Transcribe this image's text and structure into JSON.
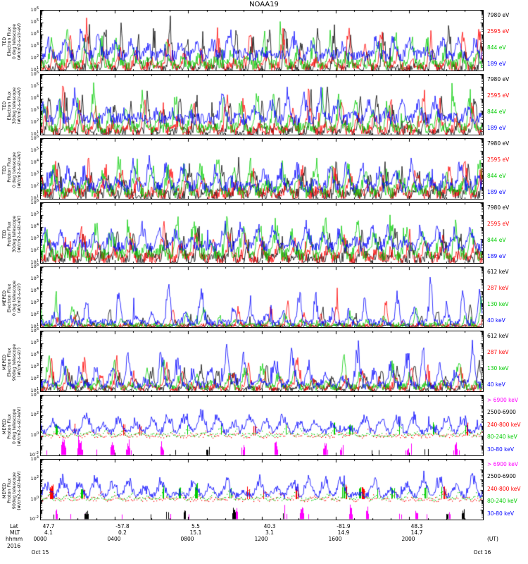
{
  "chart_data": {
    "type": "line",
    "title": "NOAA19",
    "note": "Stacked 24-hour log-scale particle flux time series (TED and MEPED instruments); traces are dense spiky orbital-pass data approximated by the stored per-series parameters (base/amp are log10 flux levels).",
    "x_axis": {
      "row_labels": {
        "lat": "Lat",
        "mlt": "MLT",
        "hhmm": "hhmm"
      },
      "year": "2016",
      "lat_values": [
        "47.7",
        "-57.8",
        "5.5",
        "40.3",
        "-81.9",
        "48.3"
      ],
      "mlt_values": [
        "4.1",
        "0.2",
        "15.1",
        "3.1",
        "14.9",
        "14.7"
      ],
      "hhmm_ticks": [
        "0000",
        "0400",
        "0800",
        "1200",
        "1600",
        "2000"
      ],
      "right_label": "(UT)",
      "date_left": "Oct 15",
      "date_right": "Oct 16"
    },
    "panels": [
      {
        "name": "ted-electron-0deg",
        "left_label_lines": [
          "TED",
          "Electron Flux",
          "0 deg telescope",
          "(#/cm2-s-str-eV)"
        ],
        "y_min_exp": 1,
        "y_max_exp": 6,
        "y_tick_exps": [
          6,
          5,
          4,
          3,
          2,
          1
        ],
        "series": [
          {
            "label": "7980 eV",
            "color": "#000000",
            "mode": "line",
            "base": 1.15,
            "noise": 0.35,
            "amp": 4.6,
            "sharp": 9,
            "gate": 0.6,
            "seed": 11
          },
          {
            "label": "2595 eV",
            "color": "#ff0000",
            "mode": "line",
            "base": 1.3,
            "noise": 0.4,
            "amp": 4.2,
            "sharp": 8,
            "gate": 0.6,
            "seed": 12
          },
          {
            "label": "844 eV",
            "color": "#00cc00",
            "mode": "line",
            "base": 1.5,
            "noise": 0.45,
            "amp": 3.9,
            "sharp": 7,
            "gate": 0.7,
            "seed": 13
          },
          {
            "label": "189 eV",
            "color": "#0000ff",
            "mode": "line",
            "base": 2.25,
            "noise": 0.5,
            "amp": 2.6,
            "sharp": 5,
            "gate": 0.8,
            "seed": 14
          }
        ]
      },
      {
        "name": "ted-electron-30deg",
        "left_label_lines": [
          "TED",
          "Electron Flux",
          "30deg telescope",
          "(#/cm2-s-str-eV)"
        ],
        "y_min_exp": 1,
        "y_max_exp": 6,
        "y_tick_exps": [
          6,
          5,
          4,
          3,
          2,
          1
        ],
        "series": [
          {
            "label": "7980 eV",
            "color": "#000000",
            "mode": "line",
            "base": 1.2,
            "noise": 0.38,
            "amp": 4.5,
            "sharp": 9,
            "gate": 0.6,
            "seed": 21
          },
          {
            "label": "2595 eV",
            "color": "#ff0000",
            "mode": "line",
            "base": 1.35,
            "noise": 0.42,
            "amp": 4.2,
            "sharp": 8,
            "gate": 0.6,
            "seed": 22
          },
          {
            "label": "844 eV",
            "color": "#00cc00",
            "mode": "line",
            "base": 1.55,
            "noise": 0.45,
            "amp": 3.9,
            "sharp": 7,
            "gate": 0.7,
            "seed": 23
          },
          {
            "label": "189 eV",
            "color": "#0000ff",
            "mode": "line",
            "base": 2.3,
            "noise": 0.5,
            "amp": 2.6,
            "sharp": 5,
            "gate": 0.8,
            "seed": 24
          }
        ]
      },
      {
        "name": "ted-proton-0deg",
        "left_label_lines": [
          "TED",
          "Proton Flux",
          "0 deg telescope",
          "(#/cm2-s-str-eV)"
        ],
        "y_min_exp": 1,
        "y_max_exp": 6,
        "y_tick_exps": [
          6,
          5,
          4,
          3,
          2,
          1
        ],
        "series": [
          {
            "label": "7980 eV",
            "color": "#000000",
            "mode": "line",
            "base": 1.35,
            "noise": 0.5,
            "amp": 3.0,
            "sharp": 6,
            "gate": 0.8,
            "seed": 31
          },
          {
            "label": "2595 eV",
            "color": "#ff0000",
            "mode": "line",
            "base": 1.45,
            "noise": 0.5,
            "amp": 3.1,
            "sharp": 6,
            "gate": 0.8,
            "seed": 32
          },
          {
            "label": "844 eV",
            "color": "#00cc00",
            "mode": "line",
            "base": 1.6,
            "noise": 0.55,
            "amp": 3.6,
            "sharp": 5,
            "gate": 0.7,
            "seed": 33
          },
          {
            "label": "189 eV",
            "color": "#0000ff",
            "mode": "line",
            "base": 2.0,
            "noise": 0.5,
            "amp": 2.7,
            "sharp": 5,
            "gate": 0.8,
            "seed": 34
          }
        ]
      },
      {
        "name": "ted-proton-30deg",
        "left_label_lines": [
          "TED",
          "Proton Flux",
          "30deg telescope",
          "(#/cm2-s-str-eV)"
        ],
        "y_min_exp": 1,
        "y_max_exp": 6,
        "y_tick_exps": [
          6,
          5,
          4,
          3,
          2,
          1
        ],
        "series": [
          {
            "label": "7980 eV",
            "color": "#000000",
            "mode": "line",
            "base": 1.3,
            "noise": 0.5,
            "amp": 3.0,
            "sharp": 6,
            "gate": 0.8,
            "seed": 41
          },
          {
            "label": "2595 eV",
            "color": "#ff0000",
            "mode": "line",
            "base": 1.4,
            "noise": 0.5,
            "amp": 3.2,
            "sharp": 6,
            "gate": 0.8,
            "seed": 42
          },
          {
            "label": "844 eV",
            "color": "#00cc00",
            "mode": "line",
            "base": 1.7,
            "noise": 0.55,
            "amp": 3.7,
            "sharp": 5,
            "gate": 0.7,
            "seed": 43
          },
          {
            "label": "189 eV",
            "color": "#0000ff",
            "mode": "line",
            "base": 2.35,
            "noise": 0.45,
            "amp": 2.5,
            "sharp": 4,
            "gate": 0.8,
            "seed": 44
          }
        ]
      },
      {
        "name": "meped-electron-0deg",
        "left_label_lines": [
          "MEPED",
          "Electron Flux",
          "0 deg telescope",
          "(#/cm2-s-str)"
        ],
        "y_min_exp": 1,
        "y_max_exp": 6,
        "y_tick_exps": [
          6,
          5,
          4,
          3,
          2,
          1
        ],
        "series": [
          {
            "label": "612 keV",
            "color": "#000000",
            "mode": "line",
            "base": 1.05,
            "noise": 0.18,
            "amp": 2.3,
            "sharp": 12,
            "gate": 2.5,
            "seed": 51
          },
          {
            "label": "287 keV",
            "color": "#ff0000",
            "mode": "line",
            "base": 1.1,
            "noise": 0.2,
            "amp": 2.9,
            "sharp": 12,
            "gate": 2.2,
            "seed": 52
          },
          {
            "label": "130 keV",
            "color": "#00cc00",
            "mode": "line",
            "base": 1.18,
            "noise": 0.22,
            "amp": 3.3,
            "sharp": 11,
            "gate": 2.0,
            "seed": 53
          },
          {
            "label": "40 keV",
            "color": "#0000ff",
            "mode": "line",
            "base": 1.35,
            "noise": 0.3,
            "amp": 4.3,
            "sharp": 9,
            "gate": 1.4,
            "seed": 54
          }
        ]
      },
      {
        "name": "meped-electron-90deg",
        "left_label_lines": [
          "MEPED",
          "Electron Flux",
          "90deg telescope",
          "(#/cm2-s-str)"
        ],
        "y_min_exp": 1,
        "y_max_exp": 6,
        "y_tick_exps": [
          6,
          5,
          4,
          3,
          2,
          1
        ],
        "series": [
          {
            "label": "612 keV",
            "color": "#000000",
            "mode": "line",
            "base": 1.15,
            "noise": 0.25,
            "amp": 2.6,
            "sharp": 7,
            "gate": 1.0,
            "seed": 61
          },
          {
            "label": "287 keV",
            "color": "#ff0000",
            "mode": "line",
            "base": 1.25,
            "noise": 0.3,
            "amp": 3.0,
            "sharp": 7,
            "gate": 0.9,
            "seed": 62
          },
          {
            "label": "130 keV",
            "color": "#00cc00",
            "mode": "line",
            "base": 1.35,
            "noise": 0.3,
            "amp": 3.3,
            "sharp": 6,
            "gate": 0.9,
            "seed": 63
          },
          {
            "label": "40 keV",
            "color": "#0000ff",
            "mode": "line",
            "base": 1.5,
            "noise": 0.35,
            "amp": 4.0,
            "sharp": 5,
            "gate": 0.8,
            "seed": 64
          }
        ]
      },
      {
        "name": "meped-proton-0deg",
        "left_label_lines": [
          "MEPED",
          "Proton Flux",
          "0 deg telescope",
          "(#/cm2-s-str-keV)"
        ],
        "y_min_exp": -2,
        "y_max_exp": 4,
        "y_tick_exps": [
          4,
          2,
          0,
          -2
        ],
        "series": [
          {
            "label": "> 6900 keV",
            "color": "#ff00ff",
            "mode": "sparse",
            "base": -1.9,
            "noise": 0.3,
            "amp": 2.6,
            "sharp": 14,
            "gate": 5.0,
            "seed": 71
          },
          {
            "label": "2500-6900",
            "color": "#000000",
            "mode": "sparse",
            "base": -1.95,
            "noise": 0.2,
            "amp": 1.4,
            "sharp": 12,
            "gate": 4.0,
            "seed": 72
          },
          {
            "label": "240-800 keV",
            "color": "#ff0000",
            "mode": "dots",
            "base": 0.0,
            "noise": 0.22,
            "amp": 1.4,
            "sharp": 9,
            "gate": 1.5,
            "seed": 73
          },
          {
            "label": "80-240 keV",
            "color": "#00cc00",
            "mode": "dots",
            "base": 0.08,
            "noise": 0.18,
            "amp": 1.7,
            "sharp": 9,
            "gate": 1.5,
            "seed": 74
          },
          {
            "label": "30-80 keV",
            "color": "#0000ff",
            "mode": "line",
            "base": 0.35,
            "noise": 0.3,
            "amp": 2.3,
            "sharp": 2,
            "gate": 0.5,
            "seed": 75
          }
        ]
      },
      {
        "name": "meped-proton-90deg",
        "left_label_lines": [
          "MEPED",
          "Proton Flux",
          "90deg telescope",
          "(#/cm2-s-str-keV)"
        ],
        "y_min_exp": -2,
        "y_max_exp": 4,
        "y_tick_exps": [
          4,
          2,
          0,
          -2
        ],
        "series": [
          {
            "label": "> 6900 keV",
            "color": "#ff00ff",
            "mode": "sparse",
            "base": -1.9,
            "noise": 0.3,
            "amp": 2.8,
            "sharp": 14,
            "gate": 4.5,
            "seed": 81
          },
          {
            "label": "2500-6900",
            "color": "#000000",
            "mode": "sparse",
            "base": -1.95,
            "noise": 0.2,
            "amp": 1.5,
            "sharp": 12,
            "gate": 4.0,
            "seed": 82
          },
          {
            "label": "240-800 keV",
            "color": "#ff0000",
            "mode": "dots",
            "base": 0.05,
            "noise": 0.22,
            "amp": 1.6,
            "sharp": 8,
            "gate": 1.3,
            "seed": 83
          },
          {
            "label": "80-240 keV",
            "color": "#00cc00",
            "mode": "dots",
            "base": 0.12,
            "noise": 0.18,
            "amp": 1.9,
            "sharp": 8,
            "gate": 1.3,
            "seed": 84
          },
          {
            "label": "30-80 keV",
            "color": "#0000ff",
            "mode": "line",
            "base": 0.4,
            "noise": 0.3,
            "amp": 2.5,
            "sharp": 2.2,
            "gate": 0.5,
            "seed": 85
          }
        ]
      }
    ]
  }
}
